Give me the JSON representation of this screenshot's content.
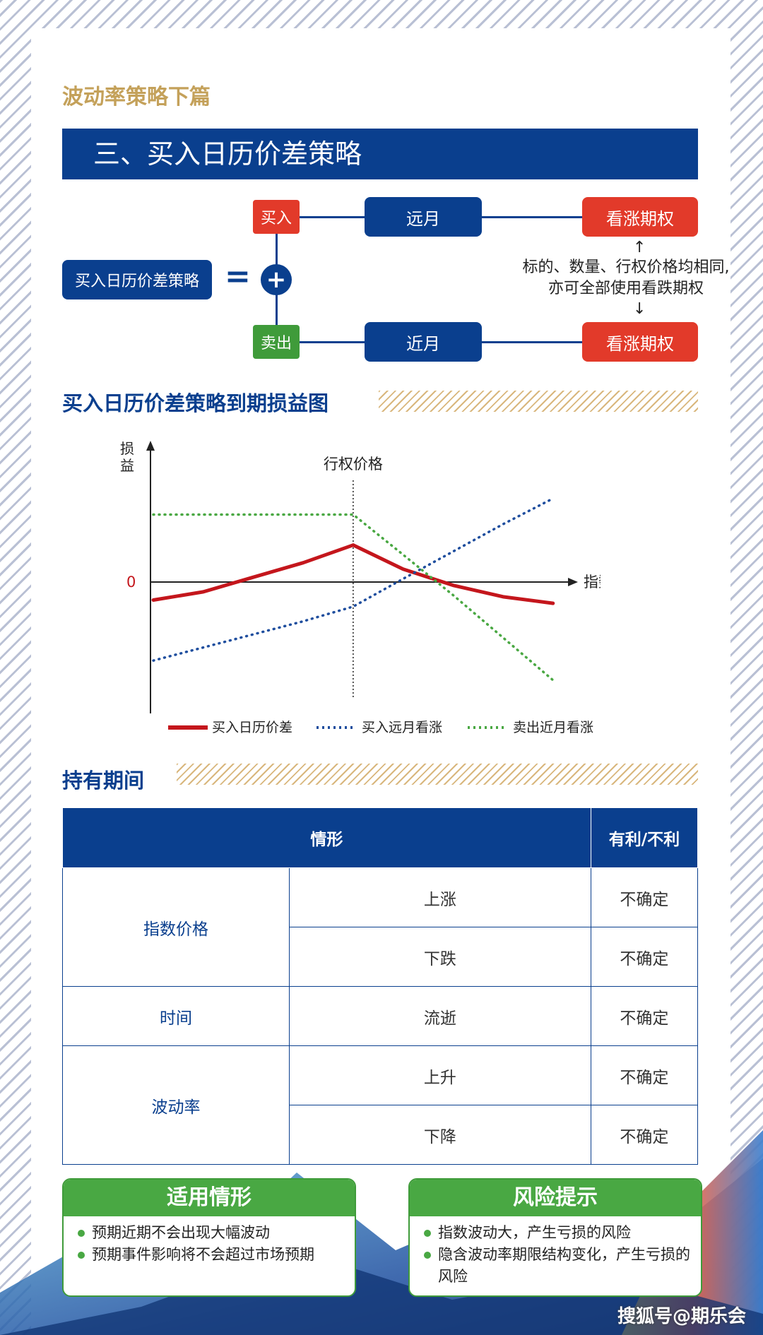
{
  "header": {
    "series_title": "波动率策略下篇",
    "section_title": "三、买入日历价差策略"
  },
  "diagram": {
    "strategy_label": "买入日历价差策略",
    "equals": "=",
    "plus": "+",
    "buy_label": "买入",
    "sell_label": "卖出",
    "far_month": "远月",
    "near_month": "近月",
    "call_top": "看涨期权",
    "call_bottom": "看涨期权",
    "note_line1": "标的、数量、行权价格均相同,",
    "note_line2": "亦可全部使用看跌期权"
  },
  "chart_section": {
    "title": "买入日历价差策略到期损益图"
  },
  "chart_data": {
    "type": "line",
    "ylabel": "损益",
    "xlabel": "指数价格",
    "zero_label": "0",
    "strike_label": "行权价格",
    "x": [
      0,
      1,
      2,
      3,
      4,
      5,
      6,
      7,
      8
    ],
    "strike_x": 4,
    "series": [
      {
        "name": "买入日历价差",
        "style": "solid",
        "color": "#c4161c",
        "values": [
          -0.55,
          -0.3,
          0.15,
          0.6,
          1.15,
          0.4,
          -0.1,
          -0.45,
          -0.65
        ]
      },
      {
        "name": "买入远月看涨",
        "style": "dotted",
        "color": "#1f4e9e",
        "values": [
          -2.4,
          -2.0,
          -1.6,
          -1.2,
          -0.75,
          0.1,
          0.95,
          1.8,
          2.6
        ]
      },
      {
        "name": "卖出近月看涨",
        "style": "dotted",
        "color": "#4aa843",
        "values": [
          2.1,
          2.1,
          2.1,
          2.1,
          2.1,
          0.85,
          -0.4,
          -1.7,
          -3.0
        ]
      }
    ],
    "ylim": [
      -3.8,
      4.0
    ],
    "xlim": [
      0,
      8.3
    ]
  },
  "holding": {
    "title": "持有期间",
    "headers": [
      "情形",
      "有利/不利"
    ],
    "rows": [
      {
        "factor": "指数价格",
        "case": "上涨",
        "result": "不确定"
      },
      {
        "factor": "",
        "case": "下跌",
        "result": "不确定"
      },
      {
        "factor": "时间",
        "case": "流逝",
        "result": "不确定"
      },
      {
        "factor": "波动率",
        "case": "上升",
        "result": "不确定"
      },
      {
        "factor": "",
        "case": "下降",
        "result": "不确定"
      }
    ]
  },
  "cards": {
    "applicable": {
      "title": "适用情形",
      "items": [
        "预期近期不会出现大幅波动",
        "预期事件影响将不会超过市场预期"
      ]
    },
    "risk": {
      "title": "风险提示",
      "items": [
        "指数波动大，产生亏损的风险",
        "隐含波动率期限结构变化，产生亏损的风险"
      ]
    }
  },
  "watermark": "搜狐号@期乐会",
  "colors": {
    "navy": "#0a3f8e",
    "red": "#e23a2a",
    "green": "#3f9b3a",
    "gold": "#c4a15a"
  }
}
